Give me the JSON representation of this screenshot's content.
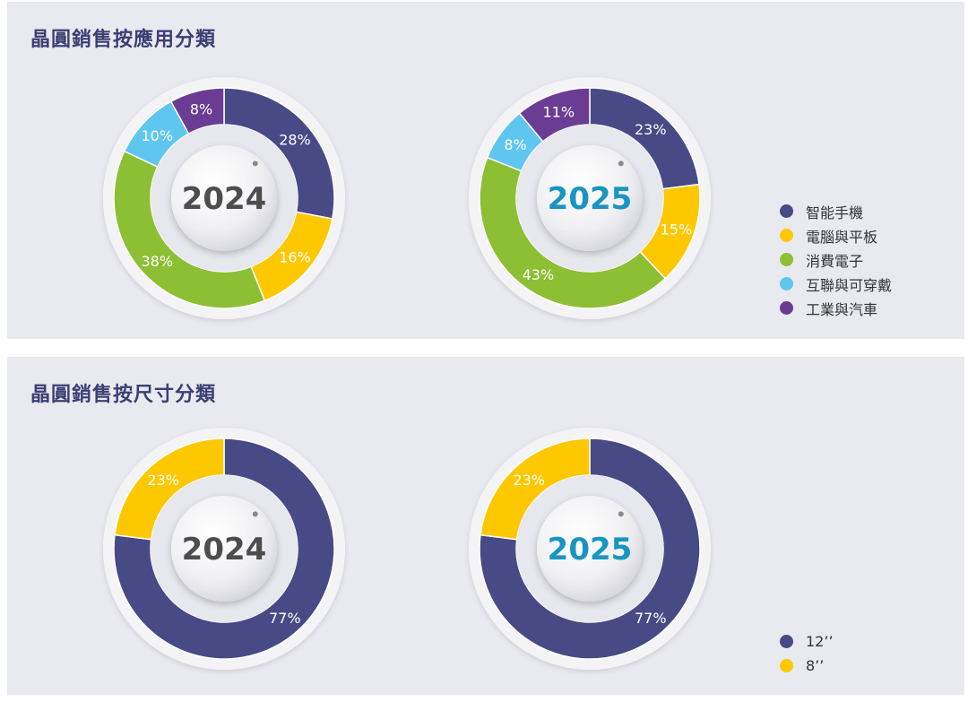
{
  "colors": {
    "smartphone": "#474a85",
    "pc_tablet": "#fdc800",
    "consumer": "#8dbf34",
    "iot": "#5fc6ef",
    "industrial": "#6a3c94",
    "year_2024": "#4d4d4d",
    "year_2025": "#1995c1"
  },
  "application_panel": {
    "title": "晶圓銷售按應用分類",
    "legend": [
      {
        "label": "智能手機",
        "color": "#474a85"
      },
      {
        "label": "電腦與平板",
        "color": "#fdc800"
      },
      {
        "label": "消費電子",
        "color": "#8dbf34"
      },
      {
        "label": "互聯與可穿戴",
        "color": "#5fc6ef"
      },
      {
        "label": "工業與汽車",
        "color": "#6a3c94"
      }
    ]
  },
  "size_panel": {
    "title": "晶圓銷售按尺寸分類",
    "legend": [
      {
        "label": "12’’",
        "color": "#474a85"
      },
      {
        "label": "8’’",
        "color": "#fdc800"
      }
    ]
  },
  "chart_data": [
    {
      "type": "pie",
      "donut": true,
      "center_label": "2024",
      "categories": [
        "智能手機",
        "電腦與平板",
        "消費電子",
        "互聯與可穿戴",
        "工業與汽車"
      ],
      "values": [
        28,
        16,
        38,
        10,
        8
      ],
      "labels": [
        "28%",
        "16%",
        "38%",
        "10%",
        "8%"
      ],
      "colors": [
        "#474a85",
        "#fdc800",
        "#8dbf34",
        "#5fc6ef",
        "#6a3c94"
      ],
      "legend": "right"
    },
    {
      "type": "pie",
      "donut": true,
      "center_label": "2025",
      "categories": [
        "智能手機",
        "電腦與平板",
        "消費電子",
        "互聯與可穿戴",
        "工業與汽車"
      ],
      "values": [
        23,
        15,
        43,
        8,
        11
      ],
      "labels": [
        "23%",
        "15%",
        "43%",
        "8%",
        "11%"
      ],
      "colors": [
        "#474a85",
        "#fdc800",
        "#8dbf34",
        "#5fc6ef",
        "#6a3c94"
      ],
      "legend": "right"
    },
    {
      "type": "pie",
      "donut": true,
      "center_label": "2024",
      "categories": [
        "12’’",
        "8’’"
      ],
      "values": [
        77,
        23
      ],
      "labels": [
        "77%",
        "23%"
      ],
      "colors": [
        "#474a85",
        "#fdc800"
      ],
      "legend": "right"
    },
    {
      "type": "pie",
      "donut": true,
      "center_label": "2025",
      "categories": [
        "12’’",
        "8’’"
      ],
      "values": [
        77,
        23
      ],
      "labels": [
        "77%",
        "23%"
      ],
      "colors": [
        "#474a85",
        "#fdc800"
      ],
      "legend": "right"
    }
  ]
}
